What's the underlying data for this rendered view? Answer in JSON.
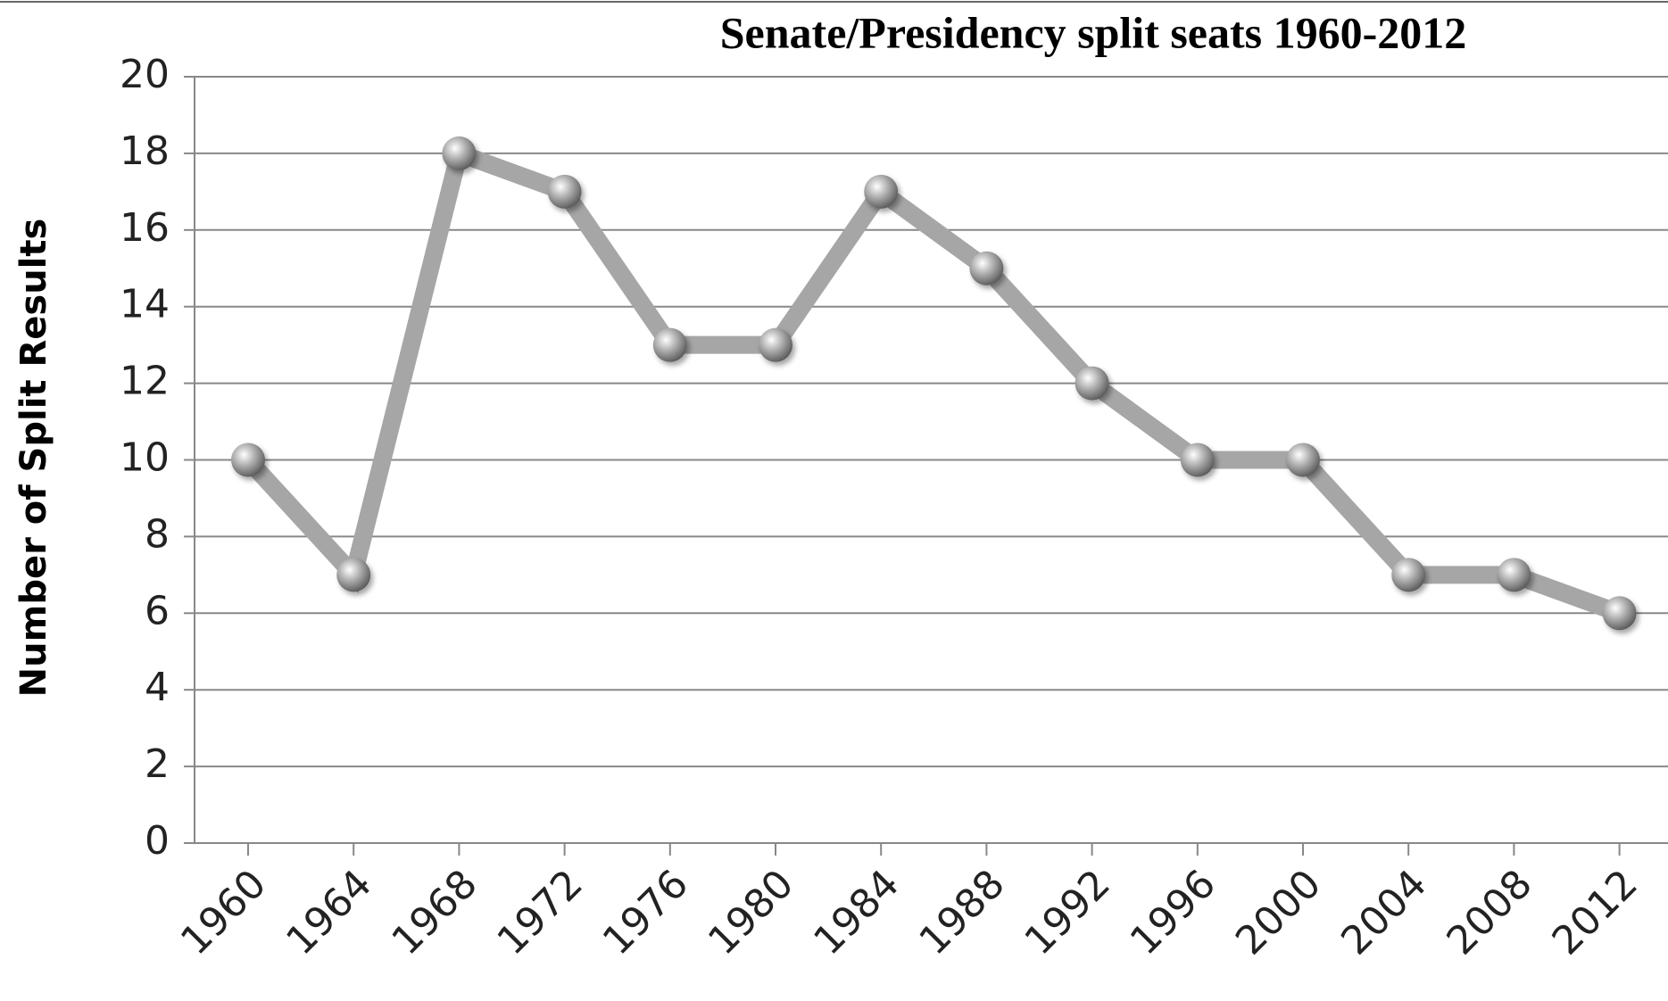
{
  "chart_data": {
    "type": "line",
    "title": "Senate/Presidency split seats 1960-2012",
    "y_label": "Number of Split Results",
    "categories": [
      "1960",
      "1964",
      "1968",
      "1972",
      "1976",
      "1980",
      "1984",
      "1988",
      "1992",
      "1996",
      "2000",
      "2004",
      "2008",
      "2012"
    ],
    "values": [
      10,
      7,
      18,
      17,
      13,
      13,
      17,
      15,
      12,
      10,
      10,
      7,
      7,
      6
    ],
    "color": "#a6a6a6",
    "ylim": [
      0,
      20
    ],
    "yticks": [
      0,
      2,
      4,
      6,
      8,
      10,
      12,
      14,
      16,
      18,
      20
    ],
    "grid": true
  }
}
